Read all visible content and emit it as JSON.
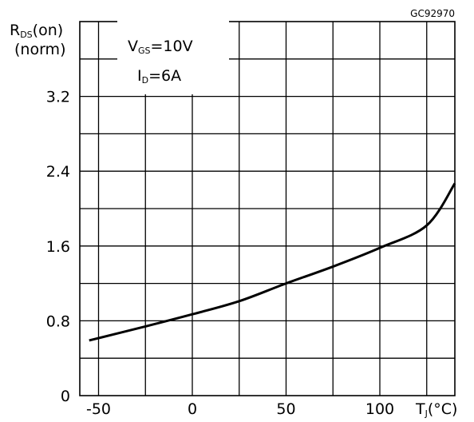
{
  "figure_id": "GC92970",
  "chart_data": {
    "type": "line",
    "y_axis_title": {
      "main": "R",
      "subscript": "DS",
      "suffix": "(on)",
      "line2": "(norm)"
    },
    "x_axis_title": {
      "main": "T",
      "subscript": "J",
      "suffix": "(°C)"
    },
    "conditions": [
      {
        "main": "V",
        "subscript": "GS",
        "suffix": "=10V"
      },
      {
        "main": "I",
        "subscript": "D",
        "suffix": "=6A"
      }
    ],
    "xlim": [
      -60,
      140
    ],
    "ylim": [
      0,
      4.0
    ],
    "x_ticks": [
      -50,
      0,
      50,
      100
    ],
    "x_tick_labels": [
      "-50",
      "0",
      "50",
      "100"
    ],
    "y_ticks": [
      0,
      0.8,
      1.6,
      2.4,
      3.2
    ],
    "y_tick_labels": [
      "0",
      "0.8",
      "1.6",
      "2.4",
      "3.2"
    ],
    "grid": true,
    "series": [
      {
        "x": [
          -55,
          -25,
          0,
          25,
          50,
          75,
          100,
          125,
          140
        ],
        "y": [
          0.59,
          0.74,
          0.87,
          1.01,
          1.2,
          1.38,
          1.58,
          1.82,
          2.27
        ]
      }
    ]
  }
}
